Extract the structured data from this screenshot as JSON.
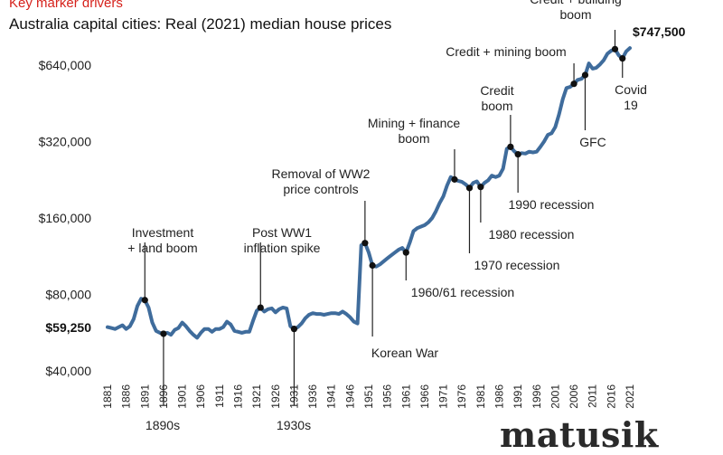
{
  "header": {
    "subtitle": "Key marker drivers",
    "title": "Australia capital cities: Real (2021) median house prices"
  },
  "brand": {
    "name": "matusik"
  },
  "colors": {
    "line": "#3f6c9c",
    "marker": "#111111",
    "accent": "#d6221c",
    "text": "#222222"
  },
  "chart_data": {
    "type": "line",
    "title": "Australia capital cities: Real (2021) median house prices",
    "subtitle": "Key marker drivers",
    "xlabel": "",
    "ylabel": "",
    "y_scale": "log2",
    "ylim": [
      40000,
      900000
    ],
    "xlim": [
      1880,
      2022
    ],
    "y_ticks": [
      {
        "value": 40000,
        "label": "$40,000"
      },
      {
        "value": 80000,
        "label": "$80,000"
      },
      {
        "value": 160000,
        "label": "$160,000"
      },
      {
        "value": 320000,
        "label": "$320,000"
      },
      {
        "value": 640000,
        "label": "$640,000"
      }
    ],
    "value_labels": [
      {
        "value": 59250,
        "label": "$59,250"
      },
      {
        "year": 2021,
        "value": 747500,
        "label": "$747,500"
      }
    ],
    "x_ticks": [
      "1881",
      "1886",
      "1891",
      "1896",
      "1901",
      "1906",
      "1911",
      "1916",
      "1921",
      "1926",
      "1931",
      "1936",
      "1941",
      "1946",
      "1951",
      "1956",
      "1961",
      "1966",
      "1971",
      "1976",
      "1981",
      "1986",
      "1991",
      "1996",
      "2001",
      "2006",
      "2011",
      "2016",
      "2021"
    ],
    "series": [
      {
        "name": "Real median house price",
        "points": [
          [
            1881,
            59500
          ],
          [
            1882,
            59000
          ],
          [
            1883,
            58500
          ],
          [
            1884,
            59500
          ],
          [
            1885,
            60500
          ],
          [
            1886,
            58500
          ],
          [
            1887,
            60000
          ],
          [
            1888,
            64000
          ],
          [
            1889,
            72000
          ],
          [
            1890,
            77000
          ],
          [
            1891,
            76000
          ],
          [
            1892,
            71000
          ],
          [
            1893,
            62000
          ],
          [
            1894,
            57500
          ],
          [
            1895,
            56500
          ],
          [
            1896,
            56000
          ],
          [
            1897,
            56500
          ],
          [
            1898,
            55500
          ],
          [
            1899,
            58000
          ],
          [
            1900,
            59000
          ],
          [
            1901,
            62000
          ],
          [
            1902,
            60000
          ],
          [
            1903,
            57500
          ],
          [
            1904,
            55500
          ],
          [
            1905,
            54000
          ],
          [
            1906,
            56500
          ],
          [
            1907,
            58500
          ],
          [
            1908,
            58500
          ],
          [
            1909,
            57000
          ],
          [
            1910,
            58500
          ],
          [
            1911,
            58500
          ],
          [
            1912,
            59500
          ],
          [
            1913,
            62500
          ],
          [
            1914,
            61000
          ],
          [
            1915,
            57500
          ],
          [
            1916,
            57000
          ],
          [
            1917,
            56500
          ],
          [
            1918,
            57000
          ],
          [
            1919,
            57000
          ],
          [
            1920,
            63000
          ],
          [
            1921,
            69000
          ],
          [
            1922,
            71000
          ],
          [
            1923,
            68500
          ],
          [
            1924,
            70000
          ],
          [
            1925,
            70500
          ],
          [
            1926,
            68000
          ],
          [
            1927,
            70000
          ],
          [
            1928,
            71000
          ],
          [
            1929,
            70500
          ],
          [
            1930,
            60000
          ],
          [
            1931,
            58500
          ],
          [
            1932,
            59500
          ],
          [
            1933,
            61500
          ],
          [
            1934,
            64500
          ],
          [
            1935,
            66500
          ],
          [
            1936,
            67500
          ],
          [
            1937,
            67000
          ],
          [
            1938,
            67000
          ],
          [
            1939,
            66500
          ],
          [
            1940,
            67000
          ],
          [
            1941,
            67500
          ],
          [
            1942,
            67500
          ],
          [
            1943,
            67000
          ],
          [
            1944,
            68500
          ],
          [
            1945,
            67000
          ],
          [
            1946,
            65000
          ],
          [
            1947,
            62500
          ],
          [
            1948,
            61500
          ],
          [
            1949,
            125000
          ],
          [
            1950,
            127500
          ],
          [
            1951,
            117000
          ],
          [
            1952,
            104000
          ],
          [
            1953,
            103000
          ],
          [
            1954,
            105000
          ],
          [
            1955,
            108000
          ],
          [
            1956,
            111000
          ],
          [
            1957,
            114000
          ],
          [
            1958,
            117000
          ],
          [
            1959,
            120000
          ],
          [
            1960,
            122000
          ],
          [
            1961,
            117000
          ],
          [
            1962,
            128000
          ],
          [
            1963,
            142000
          ],
          [
            1964,
            146000
          ],
          [
            1965,
            148000
          ],
          [
            1966,
            150000
          ],
          [
            1967,
            154000
          ],
          [
            1968,
            160000
          ],
          [
            1969,
            170000
          ],
          [
            1970,
            183000
          ],
          [
            1971,
            195000
          ],
          [
            1972,
            215000
          ],
          [
            1973,
            232000
          ],
          [
            1974,
            227000
          ],
          [
            1975,
            224000
          ],
          [
            1976,
            222000
          ],
          [
            1977,
            217000
          ],
          [
            1978,
            210000
          ],
          [
            1979,
            220000
          ],
          [
            1980,
            223000
          ],
          [
            1981,
            212000
          ],
          [
            1982,
            220000
          ],
          [
            1983,
            225000
          ],
          [
            1984,
            235000
          ],
          [
            1985,
            232000
          ],
          [
            1986,
            235000
          ],
          [
            1987,
            250000
          ],
          [
            1988,
            300000
          ],
          [
            1989,
            305000
          ],
          [
            1990,
            293000
          ],
          [
            1991,
            285000
          ],
          [
            1992,
            288000
          ],
          [
            1993,
            287000
          ],
          [
            1994,
            292000
          ],
          [
            1995,
            290000
          ],
          [
            1996,
            292000
          ],
          [
            1997,
            305000
          ],
          [
            1998,
            320000
          ],
          [
            1999,
            340000
          ],
          [
            2000,
            345000
          ],
          [
            2001,
            365000
          ],
          [
            2002,
            410000
          ],
          [
            2003,
            470000
          ],
          [
            2004,
            520000
          ],
          [
            2005,
            525000
          ],
          [
            2006,
            540000
          ],
          [
            2007,
            560000
          ],
          [
            2008,
            565000
          ],
          [
            2009,
            585000
          ],
          [
            2010,
            650000
          ],
          [
            2011,
            620000
          ],
          [
            2012,
            625000
          ],
          [
            2013,
            645000
          ],
          [
            2014,
            670000
          ],
          [
            2015,
            710000
          ],
          [
            2016,
            730000
          ],
          [
            2017,
            740000
          ],
          [
            2018,
            700000
          ],
          [
            2019,
            680000
          ],
          [
            2020,
            725000
          ],
          [
            2021,
            747500
          ]
        ]
      }
    ],
    "markers": [
      {
        "year": 1891,
        "value": 76000,
        "label": "Investment\n+ land boom",
        "position": "above"
      },
      {
        "year": 1896,
        "value": 56000,
        "label": "1890s",
        "position": "below-axis"
      },
      {
        "year": 1922,
        "value": 71000,
        "label": "Post WW1\ninflation spike",
        "position": "above"
      },
      {
        "year": 1931,
        "value": 58500,
        "label": "1930s",
        "position": "below-axis"
      },
      {
        "year": 1950,
        "value": 127500,
        "label": "Removal of WW2\nprice controls",
        "position": "above"
      },
      {
        "year": 1952,
        "value": 104000,
        "label": "Korean War",
        "position": "below"
      },
      {
        "year": 1961,
        "value": 117000,
        "label": "1960/61 recession",
        "position": "below"
      },
      {
        "year": 1974,
        "value": 227000,
        "label": "Mining + finance\nboom",
        "position": "above"
      },
      {
        "year": 1978,
        "value": 210000,
        "label": "1970 recession",
        "position": "below"
      },
      {
        "year": 1981,
        "value": 212000,
        "label": "1980 recession",
        "position": "below"
      },
      {
        "year": 1989,
        "value": 305000,
        "label": "Credit\nboom",
        "position": "above"
      },
      {
        "year": 1991,
        "value": 285000,
        "label": "1990 recession",
        "position": "below"
      },
      {
        "year": 2006,
        "value": 540000,
        "label": "Credit + mining boom",
        "position": "above"
      },
      {
        "year": 2009,
        "value": 585000,
        "label": "GFC",
        "position": "below"
      },
      {
        "year": 2017,
        "value": 740000,
        "label": "Credit + building\nboom",
        "position": "above"
      },
      {
        "year": 2019,
        "value": 680000,
        "label": "Covid\n19",
        "position": "below"
      }
    ]
  }
}
